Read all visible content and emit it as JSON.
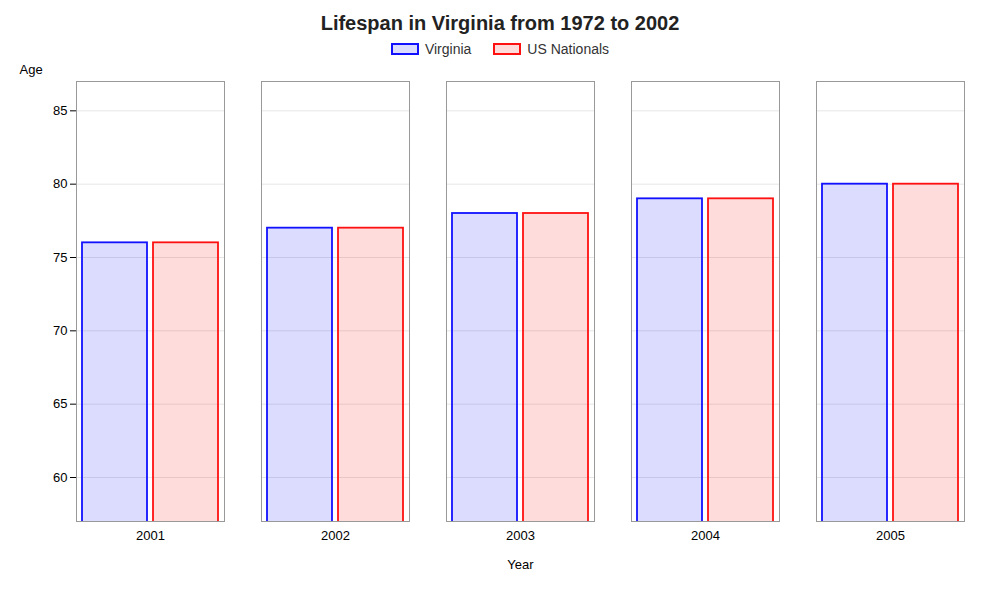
{
  "chart_data": {
    "type": "bar",
    "title": "Lifespan in Virginia from 1972 to 2002",
    "xlabel": "Year",
    "ylabel": "Age",
    "categories": [
      "2001",
      "2002",
      "2003",
      "2004",
      "2005"
    ],
    "series": [
      {
        "name": "Virginia",
        "color": "#1111ff",
        "values": [
          76,
          77,
          78,
          79,
          80
        ]
      },
      {
        "name": "US Nationals",
        "color": "#ff1111",
        "values": [
          76,
          77,
          78,
          79,
          80
        ]
      }
    ],
    "ylim": [
      57,
      87
    ],
    "yticks": [
      60,
      65,
      70,
      75,
      80,
      85
    ],
    "grid": true,
    "legend": "top"
  }
}
